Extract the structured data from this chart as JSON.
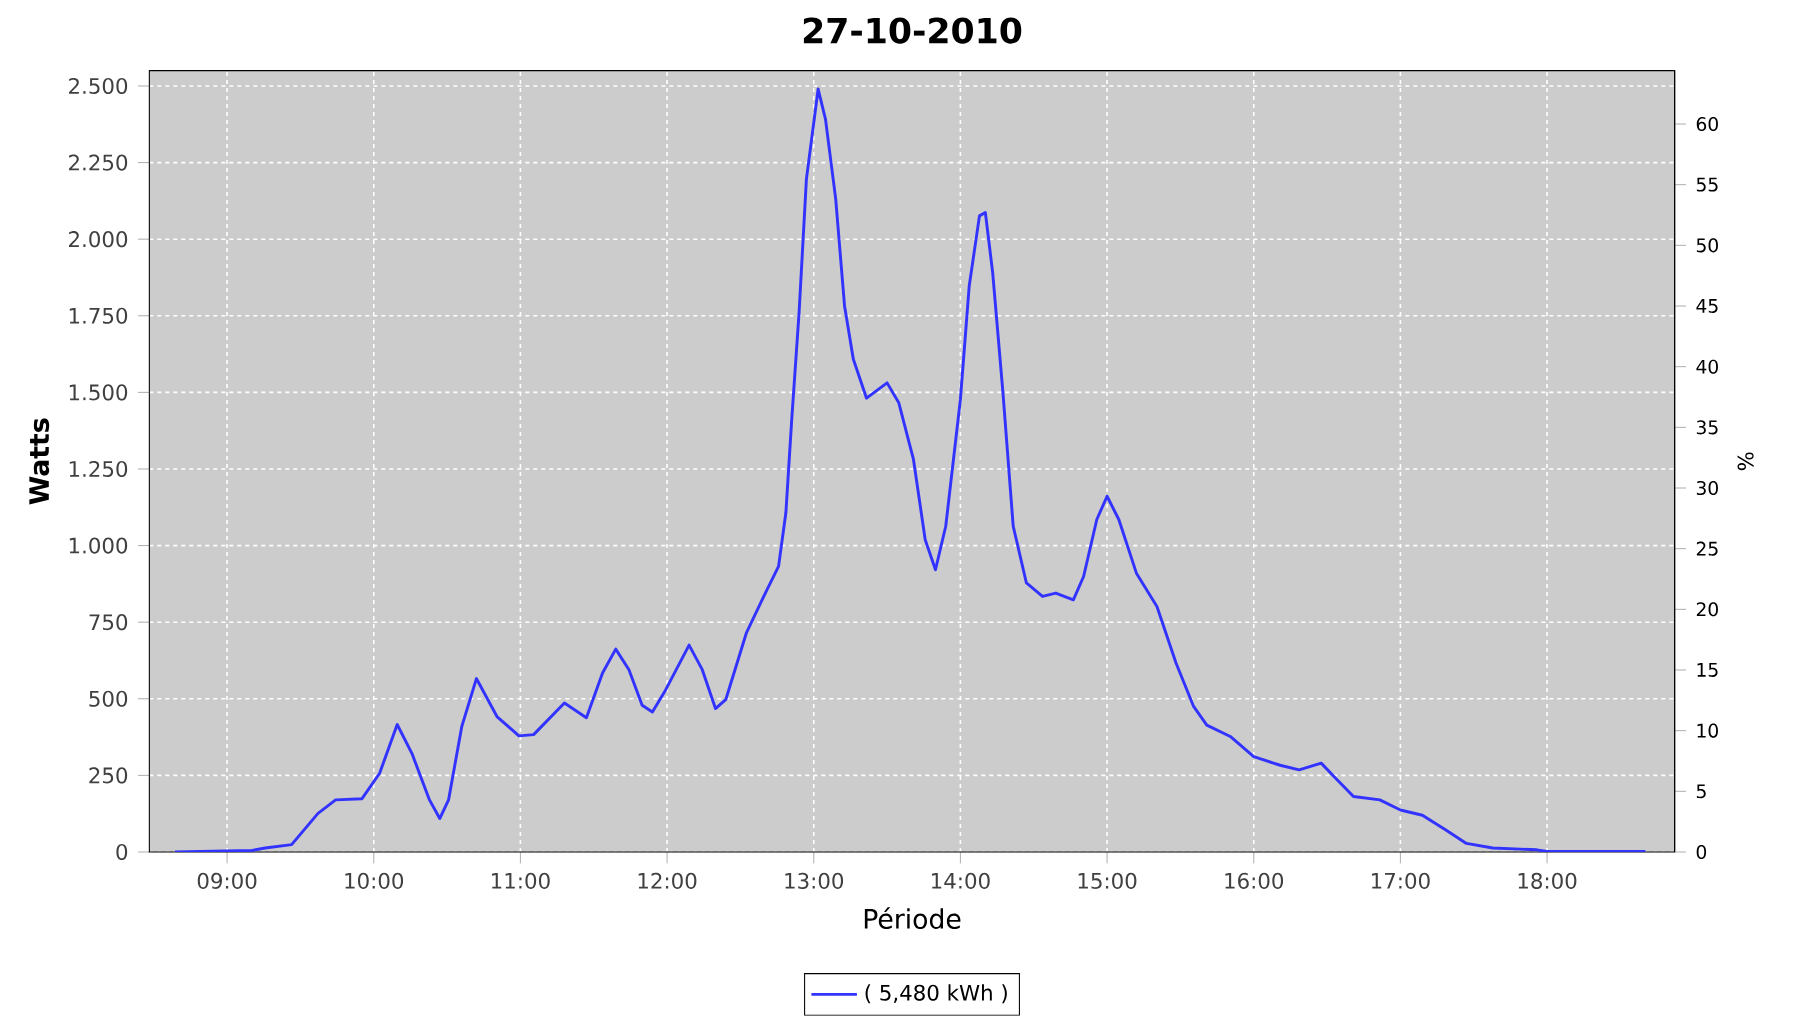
{
  "chart_data": {
    "type": "line",
    "title": "27-10-2010",
    "xlabel": "Période",
    "ylabel": "Watts",
    "y2label": "%",
    "xlim": [
      8.47,
      18.87
    ],
    "xticks": [
      {
        "value": 9,
        "label": "09:00"
      },
      {
        "value": 10,
        "label": "10:00"
      },
      {
        "value": 11,
        "label": "11:00"
      },
      {
        "value": 12,
        "label": "12:00"
      },
      {
        "value": 13,
        "label": "13:00"
      },
      {
        "value": 14,
        "label": "14:00"
      },
      {
        "value": 15,
        "label": "15:00"
      },
      {
        "value": 16,
        "label": "16:00"
      },
      {
        "value": 17,
        "label": "17:00"
      },
      {
        "value": 18,
        "label": "18:00"
      }
    ],
    "ylim": [
      0,
      2550
    ],
    "yticks": [
      0,
      250,
      500,
      750,
      {
        "value": 1000,
        "label": "1.000"
      },
      {
        "value": 1250,
        "label": "1.250"
      },
      {
        "value": 1500,
        "label": "1.500"
      },
      {
        "value": 1750,
        "label": "1.750"
      },
      {
        "value": 2000,
        "label": "2.000"
      },
      {
        "value": 2250,
        "label": "2.250"
      },
      {
        "value": 2500,
        "label": "2.500"
      }
    ],
    "y2lim": [
      0,
      64.4
    ],
    "y2ticks": [
      0,
      5,
      10,
      15,
      20,
      25,
      30,
      35,
      40,
      45,
      50,
      55,
      60
    ],
    "grid": true,
    "legend": "bottom",
    "marker": "none",
    "line_style": "solid",
    "series": [
      {
        "name": "( 5,480 kWh )",
        "color": "#3333ff",
        "x": [
          8.645,
          9.17,
          9.26,
          9.44,
          9.62,
          9.74,
          9.92,
          10.04,
          10.16,
          10.26,
          10.38,
          10.45,
          10.51,
          10.6,
          10.7,
          10.84,
          10.99,
          11.09,
          11.3,
          11.45,
          11.56,
          11.65,
          11.74,
          11.83,
          11.9,
          11.99,
          12.15,
          12.24,
          12.33,
          12.4,
          12.54,
          12.67,
          12.76,
          12.81,
          12.85,
          12.9,
          12.95,
          13.03,
          13.08,
          13.15,
          13.21,
          13.27,
          13.36,
          13.5,
          13.58,
          13.68,
          13.76,
          13.83,
          13.9,
          14.0,
          14.06,
          14.13,
          14.17,
          14.22,
          14.29,
          14.36,
          14.45,
          14.56,
          14.65,
          14.77,
          14.84,
          14.93,
          15.0,
          15.08,
          15.2,
          15.34,
          15.47,
          15.59,
          15.68,
          15.84,
          16.0,
          16.18,
          16.31,
          16.46,
          16.56,
          16.68,
          16.86,
          17.0,
          17.15,
          17.31,
          17.45,
          17.63,
          17.93,
          18.0,
          18.67
        ],
        "values": [
          0,
          5,
          13,
          24,
          126,
          170,
          174,
          257,
          416,
          322,
          170,
          109,
          170,
          409,
          566,
          442,
          379,
          383,
          486,
          438,
          584,
          662,
          595,
          479,
          457,
          529,
          675,
          595,
          468,
          497,
          714,
          845,
          932,
          1107,
          1412,
          1760,
          2196,
          2490,
          2392,
          2130,
          1782,
          1608,
          1481,
          1531,
          1466,
          1281,
          1019,
          921,
          1063,
          1477,
          1847,
          2076,
          2087,
          1891,
          1499,
          1063,
          878,
          834,
          845,
          823,
          899,
          1085,
          1161,
          1085,
          910,
          801,
          617,
          475,
          414,
          377,
          311,
          283,
          268,
          290,
          240,
          181,
          170,
          137,
          120,
          72,
          28,
          13,
          7,
          2,
          2
        ]
      }
    ]
  }
}
